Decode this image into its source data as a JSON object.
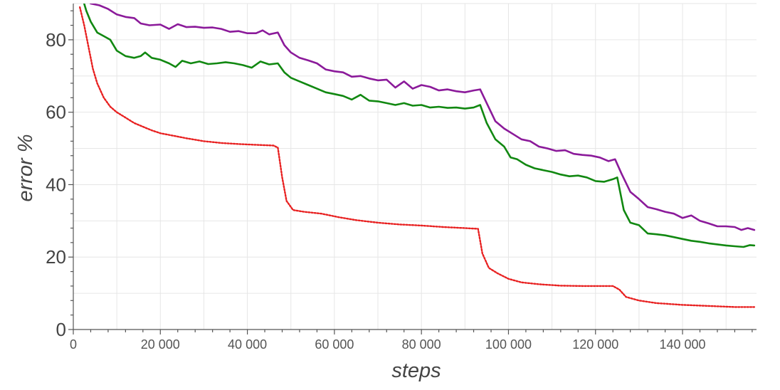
{
  "chart_data": {
    "type": "line",
    "title": "",
    "xlabel": "steps",
    "ylabel": "error %",
    "xlim": [
      0,
      157000
    ],
    "ylim": [
      0,
      90
    ],
    "grid": true,
    "x_ticks": [
      0,
      20000,
      40000,
      60000,
      80000,
      100000,
      120000,
      140000
    ],
    "x_tick_labels": [
      "0",
      "20 000",
      "40 000",
      "60 000",
      "80 000",
      "100 000",
      "120 000",
      "140 000"
    ],
    "y_ticks": [
      0,
      20,
      40,
      60,
      80
    ],
    "y_tick_labels": [
      "0",
      "20",
      "40",
      "60",
      "80"
    ],
    "series": [
      {
        "color": "#8b1a9a",
        "style": "solid",
        "points": [
          [
            2500,
            92
          ],
          [
            4000,
            90
          ],
          [
            6000,
            89.5
          ],
          [
            8000,
            88.5
          ],
          [
            10000,
            87
          ],
          [
            12000,
            86.3
          ],
          [
            14000,
            86
          ],
          [
            15500,
            84.5
          ],
          [
            17500,
            84
          ],
          [
            20000,
            84.2
          ],
          [
            22000,
            83
          ],
          [
            24000,
            84.3
          ],
          [
            26000,
            83.5
          ],
          [
            28000,
            83.6
          ],
          [
            30000,
            83.3
          ],
          [
            32000,
            83.4
          ],
          [
            34000,
            83
          ],
          [
            36000,
            82.2
          ],
          [
            38000,
            82.4
          ],
          [
            40000,
            81.8
          ],
          [
            42000,
            81.8
          ],
          [
            43500,
            82.6
          ],
          [
            45000,
            81.5
          ],
          [
            47000,
            82
          ],
          [
            48500,
            78.5
          ],
          [
            50000,
            76.5
          ],
          [
            52000,
            75
          ],
          [
            54000,
            74.3
          ],
          [
            56000,
            73.5
          ],
          [
            58000,
            71.8
          ],
          [
            60000,
            71.3
          ],
          [
            62000,
            71
          ],
          [
            64000,
            69.8
          ],
          [
            66000,
            70
          ],
          [
            68000,
            69.3
          ],
          [
            70000,
            68.8
          ],
          [
            72000,
            69
          ],
          [
            74000,
            66.8
          ],
          [
            76000,
            68.5
          ],
          [
            78000,
            66.5
          ],
          [
            80000,
            67.5
          ],
          [
            82000,
            67
          ],
          [
            84000,
            66
          ],
          [
            86000,
            66.3
          ],
          [
            88000,
            65.8
          ],
          [
            90000,
            65.5
          ],
          [
            92000,
            66
          ],
          [
            93500,
            66.3
          ],
          [
            95000,
            62.5
          ],
          [
            97000,
            57.5
          ],
          [
            99000,
            55.5
          ],
          [
            101000,
            54
          ],
          [
            103000,
            52.5
          ],
          [
            105000,
            52
          ],
          [
            107000,
            50.5
          ],
          [
            109000,
            50
          ],
          [
            111000,
            49.3
          ],
          [
            113000,
            49.5
          ],
          [
            115000,
            48.5
          ],
          [
            117000,
            48.2
          ],
          [
            119000,
            48
          ],
          [
            121000,
            47.5
          ],
          [
            123000,
            46.5
          ],
          [
            124500,
            47
          ],
          [
            126000,
            43
          ],
          [
            128000,
            38
          ],
          [
            130000,
            36
          ],
          [
            132000,
            33.8
          ],
          [
            134000,
            33.2
          ],
          [
            136000,
            32.5
          ],
          [
            138000,
            32
          ],
          [
            140000,
            30.8
          ],
          [
            142000,
            31.5
          ],
          [
            144000,
            30
          ],
          [
            146000,
            29.3
          ],
          [
            148000,
            28.5
          ],
          [
            150000,
            28.5
          ],
          [
            152000,
            28.3
          ],
          [
            153500,
            27.5
          ],
          [
            155000,
            28
          ],
          [
            156500,
            27.5
          ]
        ]
      },
      {
        "color": "#118811",
        "style": "solid",
        "points": [
          [
            2000,
            92
          ],
          [
            3000,
            88
          ],
          [
            4000,
            85
          ],
          [
            5500,
            82
          ],
          [
            7000,
            81
          ],
          [
            8500,
            80
          ],
          [
            10000,
            77
          ],
          [
            12000,
            75.5
          ],
          [
            14000,
            75
          ],
          [
            15500,
            75.5
          ],
          [
            16500,
            76.5
          ],
          [
            18000,
            75
          ],
          [
            20000,
            74.5
          ],
          [
            22000,
            73.5
          ],
          [
            23500,
            72.5
          ],
          [
            25000,
            74.2
          ],
          [
            27000,
            73.5
          ],
          [
            29000,
            74
          ],
          [
            31000,
            73.3
          ],
          [
            33000,
            73.5
          ],
          [
            35000,
            73.8
          ],
          [
            37000,
            73.5
          ],
          [
            39000,
            73
          ],
          [
            41000,
            72.3
          ],
          [
            43000,
            74
          ],
          [
            45000,
            73.2
          ],
          [
            47000,
            73.5
          ],
          [
            48500,
            71
          ],
          [
            50000,
            69.5
          ],
          [
            52000,
            68.5
          ],
          [
            54000,
            67.5
          ],
          [
            56000,
            66.5
          ],
          [
            58000,
            65.5
          ],
          [
            60000,
            65
          ],
          [
            62000,
            64.5
          ],
          [
            64000,
            63.5
          ],
          [
            66000,
            64.8
          ],
          [
            68000,
            63.2
          ],
          [
            70000,
            63
          ],
          [
            72000,
            62.5
          ],
          [
            74000,
            62
          ],
          [
            76000,
            62.5
          ],
          [
            78000,
            61.8
          ],
          [
            80000,
            62
          ],
          [
            82000,
            61.3
          ],
          [
            84000,
            61.5
          ],
          [
            86000,
            61.2
          ],
          [
            88000,
            61.3
          ],
          [
            90000,
            61
          ],
          [
            92000,
            61.3
          ],
          [
            93500,
            62
          ],
          [
            95000,
            57
          ],
          [
            97000,
            52.5
          ],
          [
            99000,
            50.5
          ],
          [
            100500,
            47.5
          ],
          [
            102000,
            47
          ],
          [
            104000,
            45.5
          ],
          [
            106000,
            44.5
          ],
          [
            108000,
            44
          ],
          [
            110000,
            43.5
          ],
          [
            112000,
            42.8
          ],
          [
            114000,
            42.3
          ],
          [
            116000,
            42.5
          ],
          [
            118000,
            42
          ],
          [
            120000,
            41
          ],
          [
            122000,
            40.8
          ],
          [
            124000,
            41.5
          ],
          [
            125000,
            42
          ],
          [
            126500,
            33
          ],
          [
            128000,
            29.5
          ],
          [
            130000,
            28.8
          ],
          [
            132000,
            26.5
          ],
          [
            134000,
            26.3
          ],
          [
            136000,
            26
          ],
          [
            138000,
            25.5
          ],
          [
            140000,
            25
          ],
          [
            142000,
            24.5
          ],
          [
            144000,
            24.2
          ],
          [
            146000,
            23.8
          ],
          [
            148000,
            23.5
          ],
          [
            150000,
            23.2
          ],
          [
            152000,
            23
          ],
          [
            154000,
            22.8
          ],
          [
            155500,
            23.3
          ],
          [
            156500,
            23.2
          ]
        ]
      },
      {
        "color": "#e82020",
        "style": "dotted",
        "points": [
          [
            1500,
            89
          ],
          [
            2500,
            84
          ],
          [
            3500,
            78
          ],
          [
            4500,
            72
          ],
          [
            5500,
            68
          ],
          [
            7000,
            64
          ],
          [
            8500,
            61.5
          ],
          [
            10000,
            60
          ],
          [
            12000,
            58.5
          ],
          [
            14000,
            57
          ],
          [
            16000,
            56
          ],
          [
            18000,
            55
          ],
          [
            20000,
            54.2
          ],
          [
            23000,
            53.5
          ],
          [
            26000,
            52.8
          ],
          [
            30000,
            52
          ],
          [
            34000,
            51.5
          ],
          [
            38000,
            51.2
          ],
          [
            42000,
            51
          ],
          [
            46000,
            50.8
          ],
          [
            47000,
            50.2
          ],
          [
            48000,
            42
          ],
          [
            49000,
            35.5
          ],
          [
            50500,
            33
          ],
          [
            53000,
            32.5
          ],
          [
            57000,
            32
          ],
          [
            61000,
            31
          ],
          [
            65000,
            30.2
          ],
          [
            70000,
            29.5
          ],
          [
            75000,
            29
          ],
          [
            80000,
            28.7
          ],
          [
            85000,
            28.3
          ],
          [
            90000,
            28
          ],
          [
            93000,
            27.8
          ],
          [
            94000,
            21
          ],
          [
            95500,
            17
          ],
          [
            97500,
            15.5
          ],
          [
            100000,
            14
          ],
          [
            103000,
            13
          ],
          [
            107000,
            12.5
          ],
          [
            112000,
            12.1
          ],
          [
            117000,
            12
          ],
          [
            121000,
            12
          ],
          [
            124000,
            12
          ],
          [
            125500,
            11
          ],
          [
            127000,
            9
          ],
          [
            130000,
            8
          ],
          [
            134000,
            7.3
          ],
          [
            140000,
            6.8
          ],
          [
            146000,
            6.5
          ],
          [
            152000,
            6.2
          ],
          [
            156500,
            6.2
          ]
        ]
      }
    ]
  }
}
